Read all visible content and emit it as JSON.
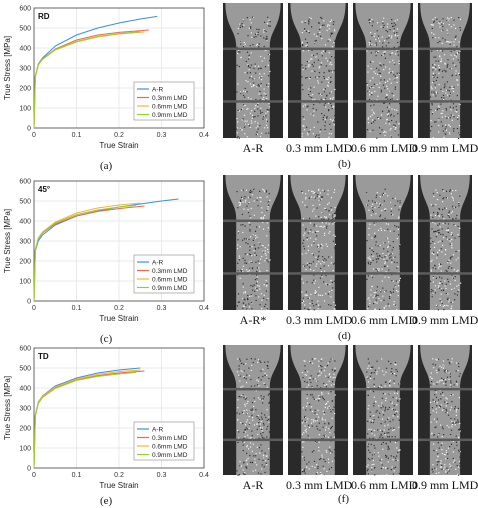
{
  "legend_entries": [
    "A-R",
    "0.3mm LMD",
    "0.6mm LMD",
    "0.9mm LMD"
  ],
  "series_colors": [
    "#3a8fd6",
    "#e8694a",
    "#f0b43c",
    "#9acd32"
  ],
  "captions": [
    "(a)",
    "(b)",
    "(c)",
    "(d)",
    "(e)",
    "(f)"
  ],
  "photo_labels_row1": [
    "A-R",
    "0.3 mm LMD",
    "0.6 mm LMD",
    "0.9 mm LMD"
  ],
  "photo_labels_row2": [
    "A-R*",
    "0.3 mm LMD",
    "0.6 mm LMD",
    "0.9 mm LMD"
  ],
  "photo_labels_row3": [
    "A-R",
    "0.3 mm LMD",
    "0.6 mm LMD",
    "0.9 mm LMD"
  ],
  "chart_data": [
    {
      "type": "line",
      "panel_tag": "RD",
      "xlabel": "True Strain",
      "ylabel": "True Stress [MPa]",
      "xlim": [
        0,
        0.4
      ],
      "ylim": [
        0,
        600
      ],
      "xticks": [
        "0",
        "0.1",
        "0.2",
        "0.3",
        "0.4"
      ],
      "yticks": [
        "0",
        "100",
        "200",
        "300",
        "400",
        "500",
        "600"
      ],
      "grid": true,
      "legend_position": "bottom-right",
      "series": [
        {
          "name": "A-R",
          "x": [
            0,
            0.003,
            0.01,
            0.02,
            0.05,
            0.1,
            0.15,
            0.2,
            0.25,
            0.29
          ],
          "y": [
            0,
            260,
            320,
            350,
            410,
            465,
            500,
            525,
            545,
            558
          ]
        },
        {
          "name": "0.3mm LMD",
          "x": [
            0,
            0.003,
            0.01,
            0.02,
            0.05,
            0.1,
            0.15,
            0.2,
            0.27
          ],
          "y": [
            0,
            255,
            315,
            345,
            395,
            440,
            465,
            478,
            490
          ]
        },
        {
          "name": "0.6mm LMD",
          "x": [
            0,
            0.003,
            0.01,
            0.02,
            0.05,
            0.1,
            0.15,
            0.2,
            0.26
          ],
          "y": [
            0,
            255,
            315,
            342,
            390,
            430,
            455,
            470,
            480
          ]
        },
        {
          "name": "0.9mm LMD",
          "x": [
            0,
            0.003,
            0.01,
            0.02,
            0.05,
            0.1,
            0.15,
            0.2,
            0.25
          ],
          "y": [
            0,
            258,
            318,
            345,
            392,
            433,
            458,
            472,
            482
          ]
        }
      ]
    },
    {
      "type": "line",
      "panel_tag": "45°",
      "xlabel": "True Strain",
      "ylabel": "True Stress [MPa]",
      "xlim": [
        0,
        0.4
      ],
      "ylim": [
        0,
        600
      ],
      "xticks": [
        "0",
        "0.1",
        "0.2",
        "0.3",
        "0.4"
      ],
      "yticks": [
        "0",
        "100",
        "200",
        "300",
        "400",
        "500",
        "600"
      ],
      "grid": true,
      "legend_position": "bottom-right",
      "series": [
        {
          "name": "A-R",
          "x": [
            0,
            0.003,
            0.01,
            0.02,
            0.05,
            0.1,
            0.15,
            0.2,
            0.25,
            0.3,
            0.34
          ],
          "y": [
            0,
            250,
            300,
            330,
            380,
            425,
            450,
            470,
            485,
            500,
            510
          ]
        },
        {
          "name": "0.3mm LMD",
          "x": [
            0,
            0.003,
            0.01,
            0.02,
            0.05,
            0.1,
            0.15,
            0.2,
            0.26
          ],
          "y": [
            0,
            255,
            310,
            340,
            385,
            425,
            448,
            462,
            475
          ]
        },
        {
          "name": "0.6mm LMD",
          "x": [
            0,
            0.003,
            0.01,
            0.02,
            0.05,
            0.1,
            0.15,
            0.2,
            0.25
          ],
          "y": [
            0,
            258,
            315,
            345,
            395,
            440,
            465,
            480,
            490
          ]
        },
        {
          "name": "0.9mm LMD",
          "x": [
            0,
            0.003,
            0.01,
            0.02,
            0.05,
            0.1,
            0.15,
            0.2,
            0.24
          ],
          "y": [
            0,
            255,
            312,
            342,
            390,
            432,
            455,
            470,
            478
          ]
        }
      ]
    },
    {
      "type": "line",
      "panel_tag": "TD",
      "xlabel": "True Strain",
      "ylabel": "True Stress [MPa]",
      "xlim": [
        0,
        0.4
      ],
      "ylim": [
        0,
        600
      ],
      "xticks": [
        "0",
        "0.1",
        "0.2",
        "0.3",
        "0.4"
      ],
      "yticks": [
        "0",
        "100",
        "200",
        "300",
        "400",
        "500",
        "600"
      ],
      "grid": true,
      "legend_position": "bottom-right",
      "series": [
        {
          "name": "A-R",
          "x": [
            0,
            0.003,
            0.01,
            0.02,
            0.05,
            0.1,
            0.15,
            0.2,
            0.25
          ],
          "y": [
            0,
            265,
            330,
            360,
            410,
            450,
            475,
            490,
            500
          ]
        },
        {
          "name": "0.3mm LMD",
          "x": [
            0,
            0.003,
            0.01,
            0.02,
            0.05,
            0.1,
            0.15,
            0.2,
            0.26
          ],
          "y": [
            0,
            260,
            325,
            355,
            400,
            440,
            462,
            475,
            485
          ]
        },
        {
          "name": "0.6mm LMD",
          "x": [
            0,
            0.003,
            0.01,
            0.02,
            0.05,
            0.1,
            0.15,
            0.2,
            0.25
          ],
          "y": [
            0,
            262,
            328,
            358,
            405,
            445,
            468,
            482,
            490
          ]
        },
        {
          "name": "0.9mm LMD",
          "x": [
            0,
            0.003,
            0.01,
            0.02,
            0.05,
            0.1,
            0.15,
            0.2,
            0.24
          ],
          "y": [
            0,
            258,
            322,
            352,
            398,
            438,
            458,
            470,
            478
          ]
        }
      ]
    }
  ]
}
